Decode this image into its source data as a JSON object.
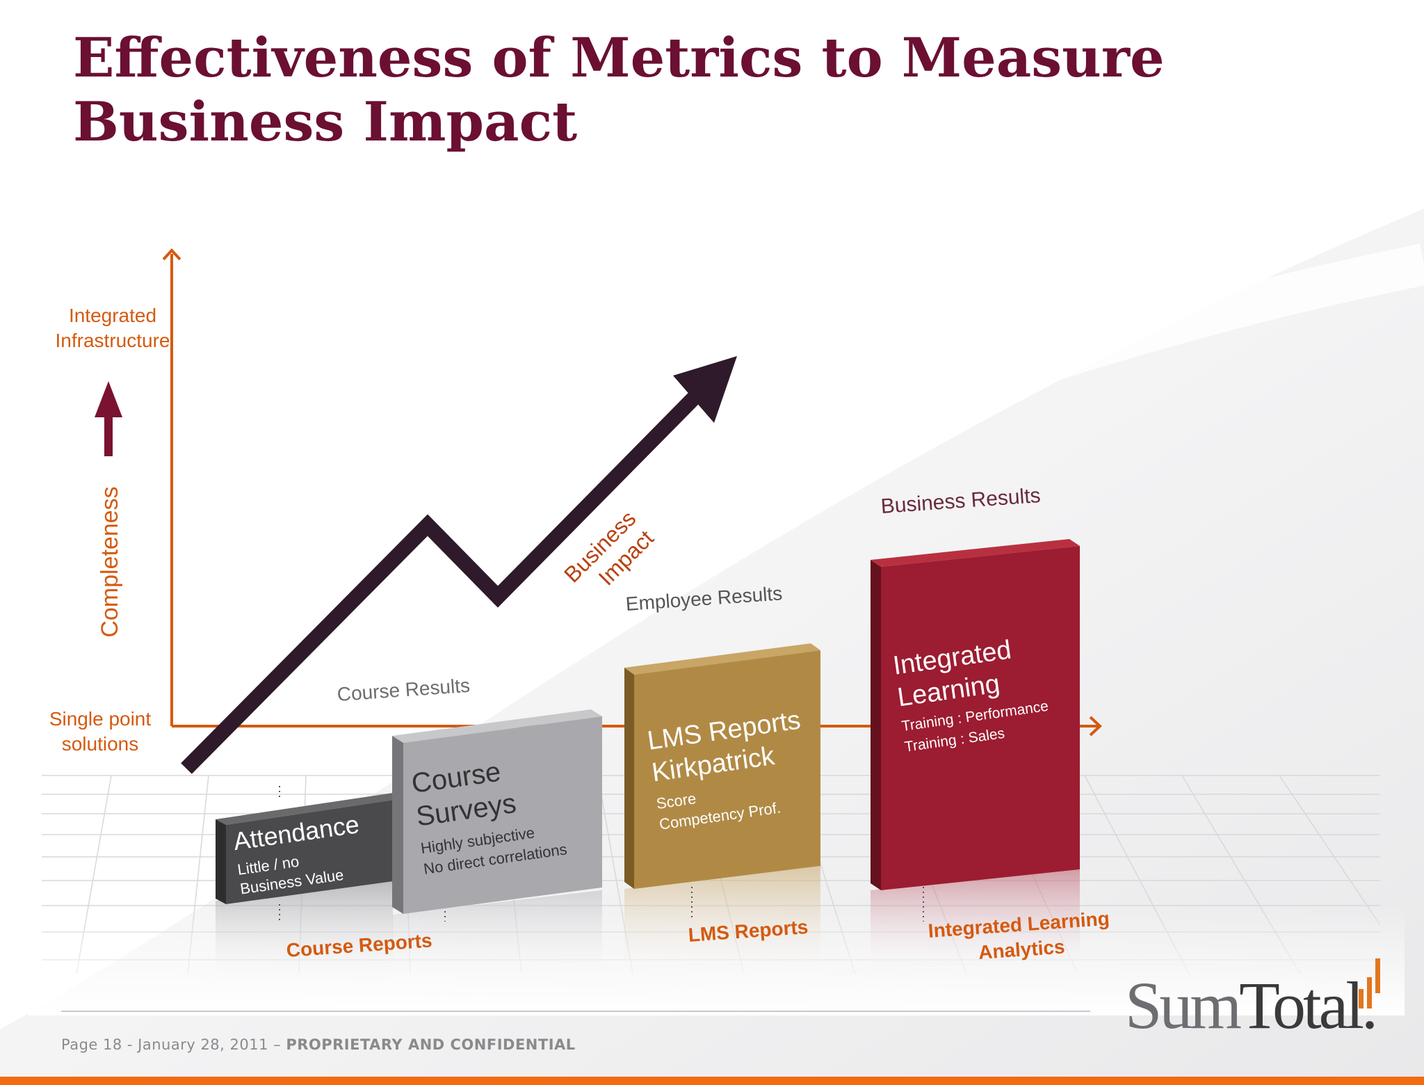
{
  "title": {
    "line1": "Effectiveness of Metrics to Measure",
    "line2": "Business Impact"
  },
  "axis": {
    "y_top": "Integrated Infrastructure",
    "y_top_line1": "Integrated",
    "y_top_line2": "Infrastructure",
    "y_mid": "Completeness",
    "y_bottom_line1": "Single point",
    "y_bottom_line2": "solutions"
  },
  "trend": {
    "label_line1": "Business",
    "label_line2": "Impact"
  },
  "levels": [
    {
      "heading": "Course Results"
    },
    {
      "heading": "Employee Results"
    },
    {
      "heading": "Business Results"
    }
  ],
  "blocks": [
    {
      "title": "Attendance",
      "line1": "Little / no",
      "line2": "Business Value"
    },
    {
      "title_line1": "Course",
      "title_line2": "Surveys",
      "line1": "Highly subjective",
      "line2": "No direct correlations"
    },
    {
      "title_line1": "LMS Reports",
      "title_line2": "Kirkpatrick",
      "line1": "Score",
      "line2": "Competency  Prof."
    },
    {
      "title_line1": "Integrated",
      "title_line2": "Learning",
      "line1": "Training : Performance",
      "line2": "Training : Sales"
    }
  ],
  "categories": {
    "course_reports": "Course Reports",
    "lms_reports": "LMS Reports",
    "ila_line1": "Integrated Learning",
    "ila_line2": "Analytics"
  },
  "logo": {
    "part1": "Sum",
    "part2": "Total."
  },
  "footer": {
    "page": "Page 18 - January 28, 2011 – ",
    "confidential": "PROPRIETARY AND CONFIDENTIAL"
  },
  "colors": {
    "title": "#6b0f33",
    "orange": "#d45a10",
    "arrow": "#2e1a2a",
    "attendance": "#4a4a4c",
    "surveys": "#a9a9ad",
    "lms": "#b08a45",
    "integrated": "#9c1c31"
  }
}
